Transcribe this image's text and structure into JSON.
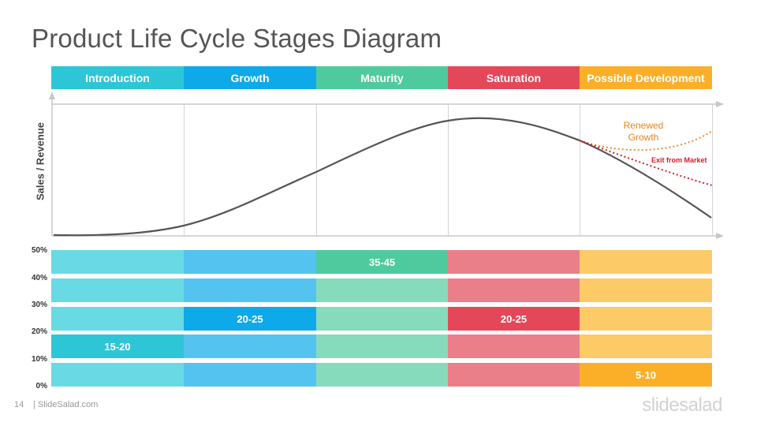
{
  "title": "Product Life Cycle Stages Diagram",
  "stages": [
    {
      "label": "Introduction",
      "color": "#2DC6D6",
      "bar_color": "#69D9E3"
    },
    {
      "label": "Growth",
      "color": "#0EA9E8",
      "bar_color": "#54C3F0"
    },
    {
      "label": "Maturity",
      "color": "#4ECA9E",
      "bar_color": "#86DBBC"
    },
    {
      "label": "Saturation",
      "color": "#E44858",
      "bar_color": "#EA7F8A"
    },
    {
      "label": "Possible Development",
      "color": "#FBAF29",
      "bar_color": "#FCCB67"
    }
  ],
  "y_axis_label": "Sales / Revenue",
  "annotations": {
    "renewed_growth": "Renewed Growth",
    "exit_from_market": "Exit from  Market"
  },
  "annotation_colors": {
    "renewed_growth": "#E8831A",
    "exit_from_market": "#D0202F"
  },
  "percent_ticks": [
    "50%",
    "40%",
    "30%",
    "20%",
    "10%",
    "0%"
  ],
  "highlights": [
    {
      "stage": "Introduction",
      "label": "15-20"
    },
    {
      "stage": "Growth",
      "label": "20-25"
    },
    {
      "stage": "Maturity",
      "label": "35-45"
    },
    {
      "stage": "Saturation",
      "label": "20-25"
    },
    {
      "stage": "Possible Development",
      "label": "5-10"
    }
  ],
  "footer": {
    "page_number": "14",
    "site": "| SlideSalad.com",
    "logo": "slidesalad"
  }
}
